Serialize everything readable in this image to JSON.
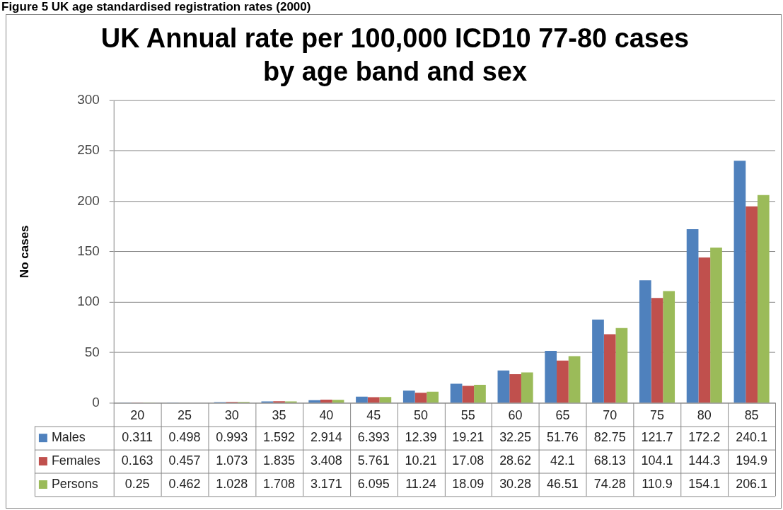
{
  "chart_data": {
    "type": "bar",
    "title": "UK Annual rate per 100,000 ICD10 77-80 cases by age band and sex",
    "ylabel": "No cases",
    "annotations": [
      "Figure 5 UK age standardised registration rates (2000)"
    ],
    "categories": [
      "20",
      "25",
      "30",
      "35",
      "40",
      "45",
      "50",
      "55",
      "60",
      "65",
      "70",
      "75",
      "80",
      "85"
    ],
    "series": [
      {
        "name": "Males",
        "color": "#4f81bd",
        "values": [
          0.311,
          0.498,
          0.993,
          1.592,
          2.914,
          6.393,
          12.39,
          19.21,
          32.25,
          51.76,
          82.75,
          121.7,
          172.2,
          240.1
        ]
      },
      {
        "name": "Females",
        "color": "#c0504d",
        "values": [
          0.163,
          0.457,
          1.073,
          1.835,
          3.408,
          5.761,
          10.21,
          17.08,
          28.62,
          42.1,
          68.13,
          104.1,
          144.3,
          194.9
        ]
      },
      {
        "name": "Persons",
        "color": "#9bbb59",
        "values": [
          0.25,
          0.462,
          1.028,
          1.708,
          3.171,
          6.095,
          11.24,
          18.09,
          30.28,
          46.51,
          74.28,
          110.9,
          154.1,
          206.1
        ]
      }
    ],
    "ylim": [
      0,
      300
    ],
    "yticks": [
      0,
      50,
      100,
      150,
      200,
      250,
      300
    ],
    "grid": "y",
    "legend": "bottom",
    "data_labels": true
  }
}
